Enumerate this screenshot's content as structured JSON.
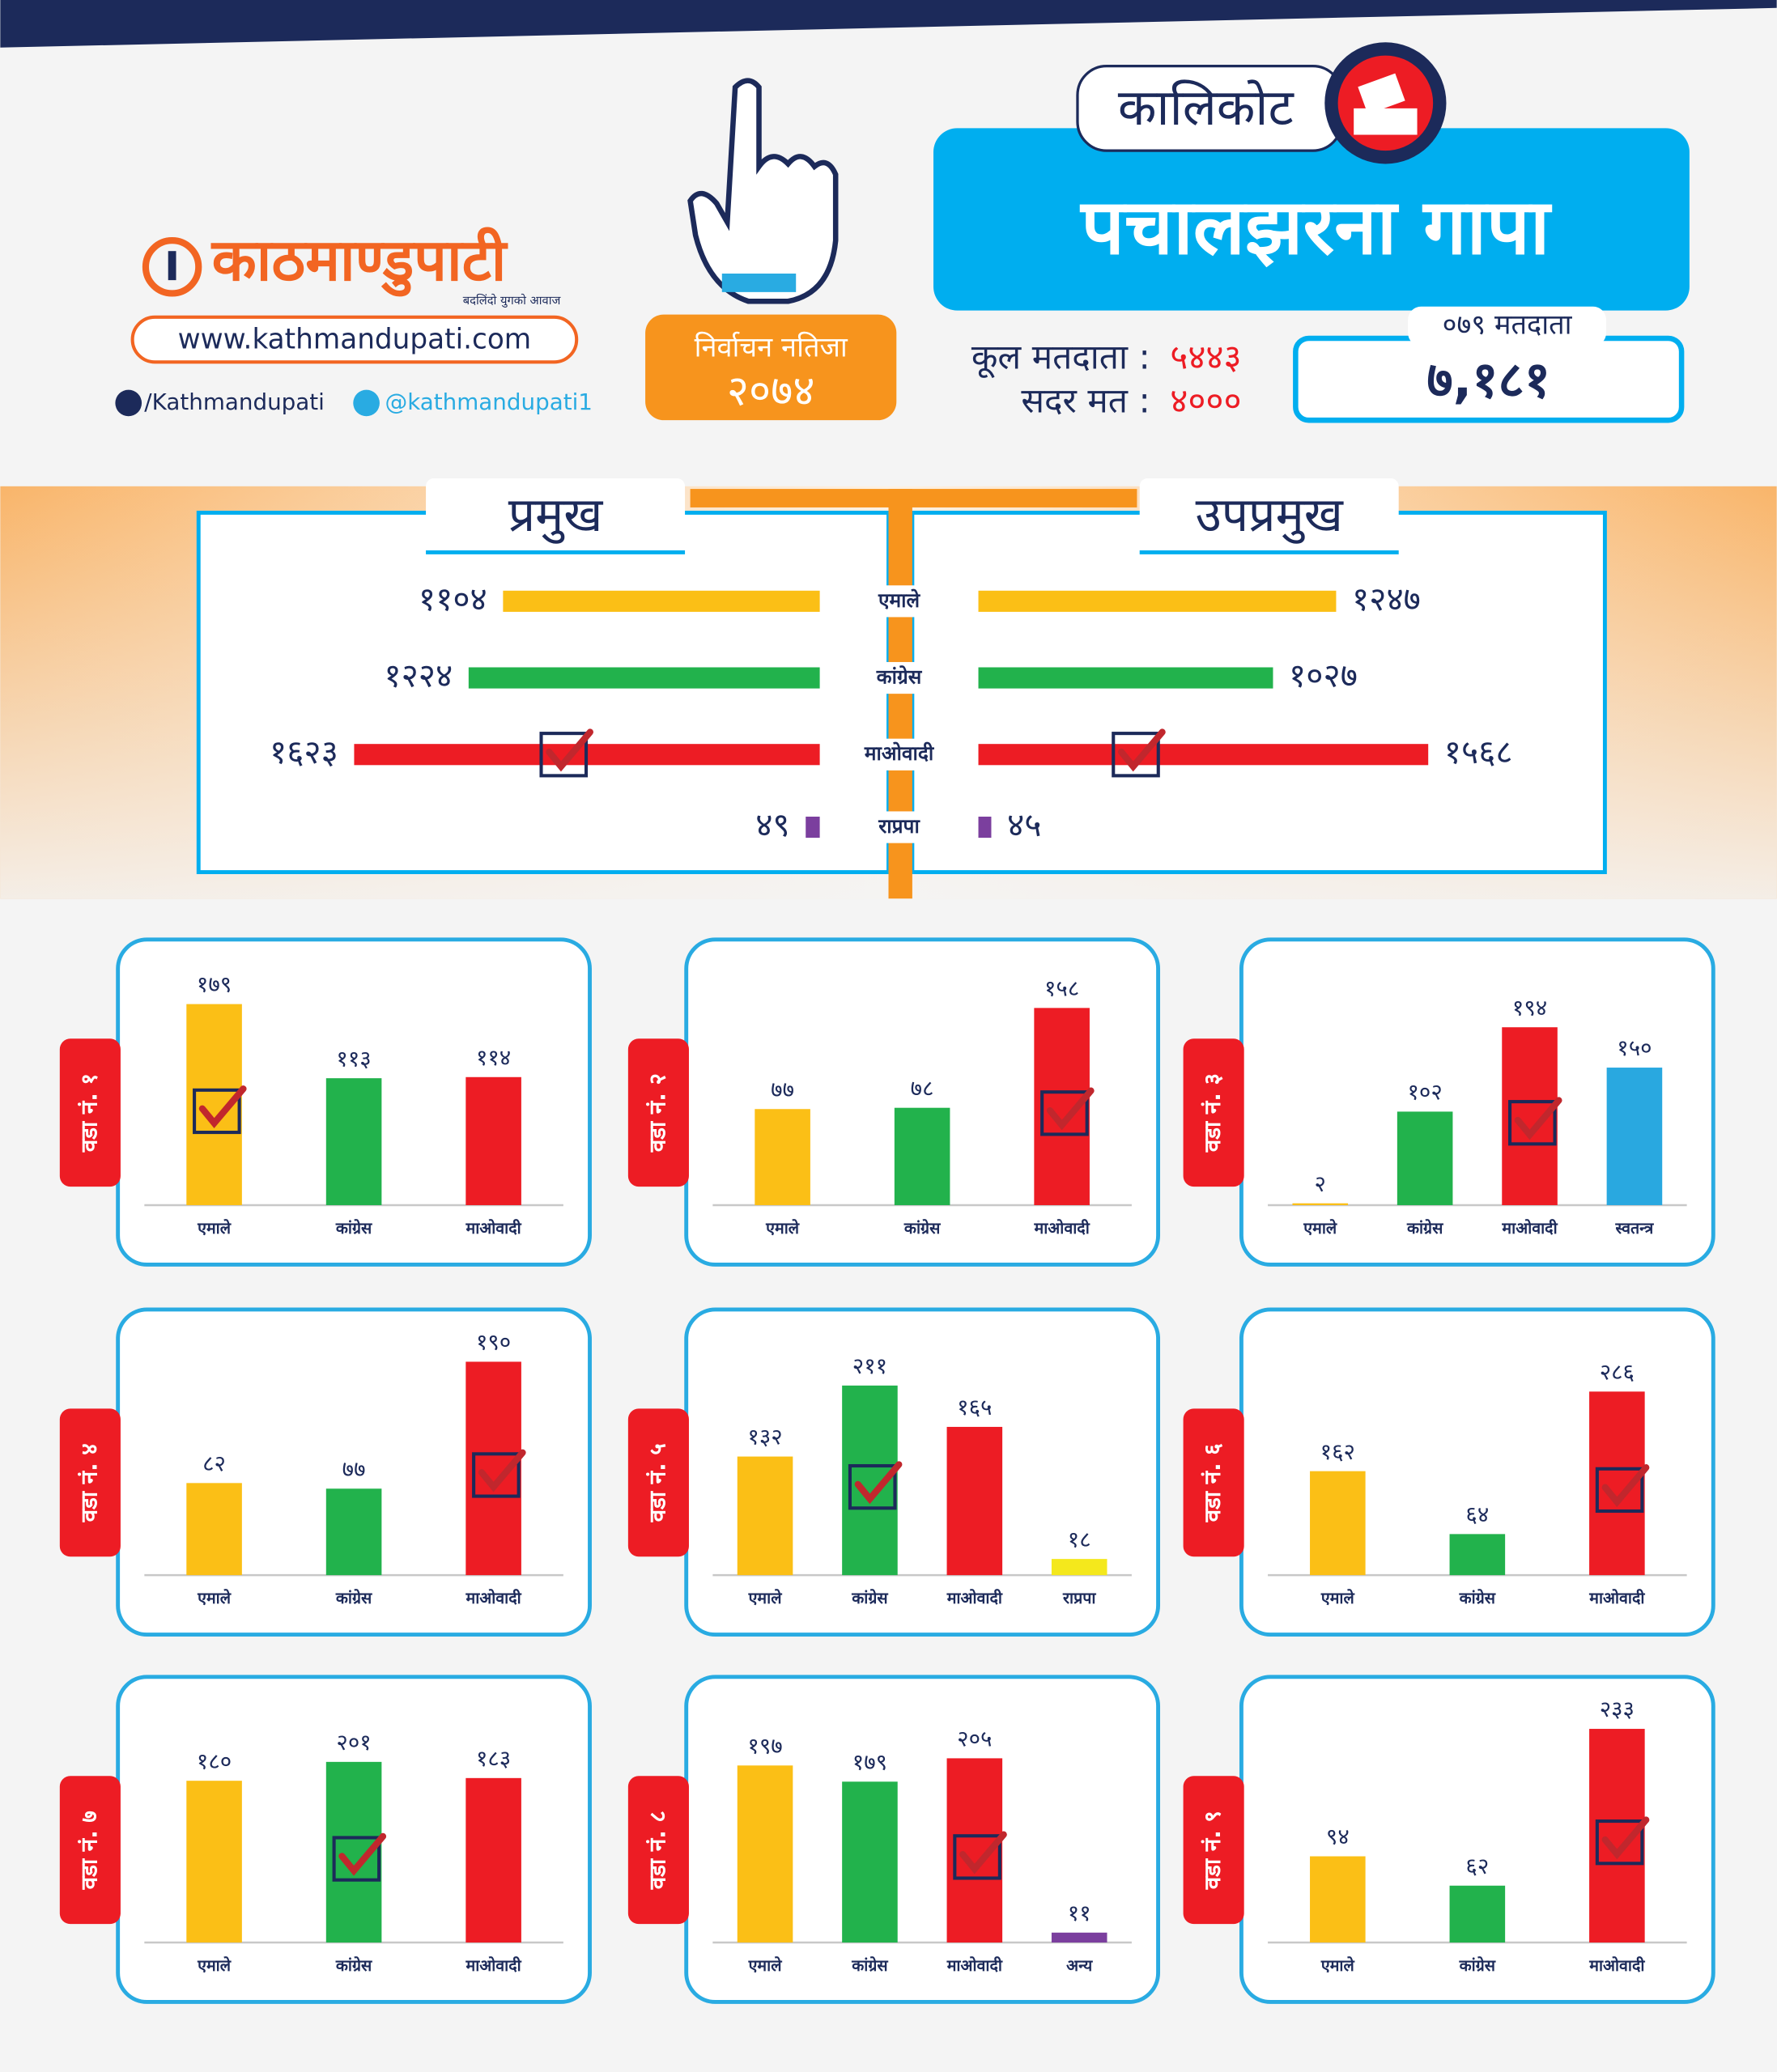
{
  "header": {
    "logo": "काठमाण्डुपाटी",
    "tagline": "बदलिंदो युगको आवाज",
    "website": "www.kathmandupati.com",
    "facebook": "/Kathmandupati",
    "twitter": "@kathmandupati1",
    "badge_title": "निर्वाचन नतिजा",
    "badge_year": "२०७४",
    "district": "कालिकोट",
    "municipality": "पचालझरना गापा",
    "total_voters_label": "कूल मतदाता :",
    "total_voters": "५४४३",
    "valid_votes_label": "सदर मत :",
    "valid_votes": "४०००",
    "voters_079_label": "०७९ मतदाता",
    "voters_079": "७,१८१"
  },
  "chart_data": [
    {
      "type": "butterfly",
      "categories": [
        "एमाले",
        "कांग्रेस",
        "माओवादी",
        "राप्रपा"
      ],
      "colors": [
        "#fbbf16",
        "#22b24c",
        "#ed1c24",
        "#7b3f9e"
      ],
      "xlim": [
        0,
        1700
      ],
      "series": [
        {
          "name": "प्रमुख",
          "values": [
            1104,
            1224,
            1623,
            49
          ],
          "value_labels": [
            "११०४",
            "१२२४",
            "१६२३",
            "४९"
          ],
          "winner": 2
        },
        {
          "name": "उपप्रमुख",
          "values": [
            1247,
            1027,
            1568,
            45
          ],
          "value_labels": [
            "१२४७",
            "१०२७",
            "१५६८",
            "४५"
          ],
          "winner": 2
        }
      ]
    },
    {
      "type": "bar",
      "title": "वडा नं. १",
      "categories": [
        "एमाले",
        "कांग्रेस",
        "माओवादी"
      ],
      "values": [
        179,
        113,
        114
      ],
      "value_labels": [
        "१७९",
        "११३",
        "११४"
      ],
      "colors": [
        "#fbbf16",
        "#22b24c",
        "#ed1c24"
      ],
      "ylim": [
        0,
        200
      ],
      "winner": 0
    },
    {
      "type": "bar",
      "title": "वडा नं. २",
      "categories": [
        "एमाले",
        "कांग्रेस",
        "माओवादी"
      ],
      "values": [
        77,
        78,
        158
      ],
      "value_labels": [
        "७७",
        "७८",
        "१५८"
      ],
      "colors": [
        "#fbbf16",
        "#22b24c",
        "#ed1c24"
      ],
      "ylim": [
        0,
        180
      ],
      "winner": 2
    },
    {
      "type": "bar",
      "title": "वडा नं. ३",
      "categories": [
        "एमाले",
        "कांग्रेस",
        "माओवादी",
        "स्वतन्त्र"
      ],
      "values": [
        2,
        102,
        194,
        150
      ],
      "value_labels": [
        "२",
        "१०२",
        "१९४",
        "१५०"
      ],
      "colors": [
        "#fbbf16",
        "#22b24c",
        "#ed1c24",
        "#29a8e0"
      ],
      "ylim": [
        0,
        245
      ],
      "winner": 2
    },
    {
      "type": "bar",
      "title": "वडा नं. ४",
      "categories": [
        "एमाले",
        "कांग्रेस",
        "माओवादी"
      ],
      "values": [
        82,
        77,
        190
      ],
      "value_labels": [
        "८२",
        "७७",
        "१९०"
      ],
      "colors": [
        "#fbbf16",
        "#22b24c",
        "#ed1c24"
      ],
      "ylim": [
        0,
        200
      ],
      "winner": 2
    },
    {
      "type": "bar",
      "title": "वडा नं. ५",
      "categories": [
        "एमाले",
        "कांग्रेस",
        "माओवादी",
        "राप्रपा"
      ],
      "values": [
        132,
        211,
        165,
        18
      ],
      "value_labels": [
        "१३२",
        "२११",
        "१६५",
        "१८"
      ],
      "colors": [
        "#fbbf16",
        "#22b24c",
        "#ed1c24",
        "#f4e81c"
      ],
      "ylim": [
        0,
        250
      ],
      "winner": 1
    },
    {
      "type": "bar",
      "title": "वडा नं. ६",
      "categories": [
        "एमाले",
        "कांग्रेस",
        "माओवादी"
      ],
      "values": [
        162,
        64,
        286
      ],
      "value_labels": [
        "१६२",
        "६४",
        "२८६"
      ],
      "colors": [
        "#fbbf16",
        "#22b24c",
        "#ed1c24"
      ],
      "ylim": [
        0,
        350
      ],
      "winner": 2
    },
    {
      "type": "bar",
      "title": "वडा नं. ७",
      "categories": [
        "एमाले",
        "कांग्रेस",
        "माओवादी"
      ],
      "values": [
        180,
        201,
        183
      ],
      "value_labels": [
        "१८०",
        "२०१",
        "१८३"
      ],
      "colors": [
        "#fbbf16",
        "#22b24c",
        "#ed1c24"
      ],
      "ylim": [
        0,
        250
      ],
      "winner": 1
    },
    {
      "type": "bar",
      "title": "वडा नं. ८",
      "categories": [
        "एमाले",
        "कांग्रेस",
        "माओवादी",
        "अन्य"
      ],
      "values": [
        197,
        179,
        205,
        11
      ],
      "value_labels": [
        "१९७",
        "१७९",
        "२०५",
        "११"
      ],
      "colors": [
        "#fbbf16",
        "#22b24c",
        "#ed1c24",
        "#7b3f9e"
      ],
      "ylim": [
        0,
        250
      ],
      "winner": 2
    },
    {
      "type": "bar",
      "title": "वडा नं. ९",
      "categories": [
        "एमाले",
        "कांग्रेस",
        "माओवादी"
      ],
      "values": [
        94,
        62,
        233
      ],
      "value_labels": [
        "९४",
        "६२",
        "२३३"
      ],
      "colors": [
        "#fbbf16",
        "#22b24c",
        "#ed1c24"
      ],
      "ylim": [
        0,
        245
      ],
      "winner": 2
    }
  ]
}
